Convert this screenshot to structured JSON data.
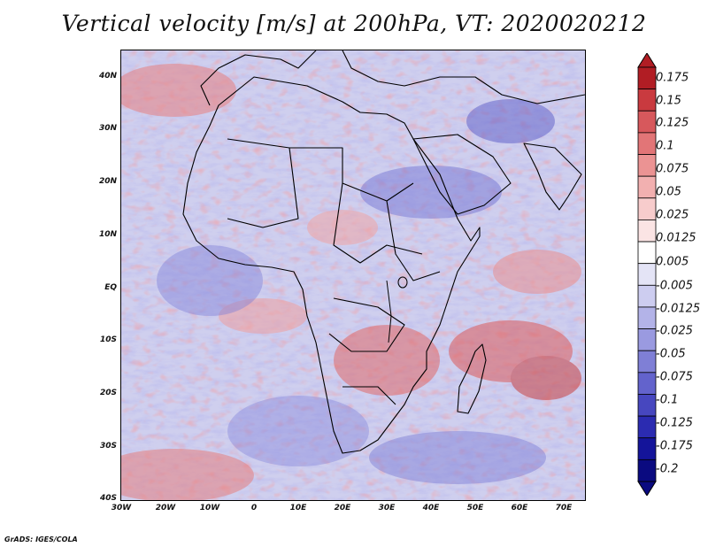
{
  "title": "Vertical velocity [m/s] at 200hPa, VT: 2020020212",
  "credit": "GrADS: IGES/COLA",
  "map": {
    "region": "Africa and surrounding oceans",
    "lon_range": [
      -30,
      75
    ],
    "lat_range": [
      -40,
      45
    ],
    "lat_ticks": [
      "40N",
      "30N",
      "20N",
      "10N",
      "EQ",
      "10S",
      "20S",
      "30S",
      "40S"
    ],
    "lon_ticks": [
      "30W",
      "20W",
      "10W",
      "0",
      "10E",
      "20E",
      "30E",
      "40E",
      "50E",
      "60E",
      "70E"
    ],
    "colormap": "blue-white-red diverging",
    "coastline_color": "#000000"
  },
  "colorbar": {
    "labels": [
      "0.175",
      "0.15",
      "0.125",
      "0.1",
      "0.075",
      "0.05",
      "0.025",
      "0.0125",
      "0.005",
      "-0.005",
      "-0.0125",
      "-0.025",
      "-0.05",
      "-0.075",
      "-0.1",
      "-0.125",
      "-0.175",
      "-0.2"
    ],
    "colors": [
      "#b11d24",
      "#c93a3f",
      "#d7585c",
      "#e27577",
      "#eb9393",
      "#f2b0b0",
      "#f7cccc",
      "#fbe4e4",
      "#ffffff",
      "#e4e4f6",
      "#cdcdf0",
      "#b3b3e8",
      "#9a9ae0",
      "#7f7fd6",
      "#6363cc",
      "#4747bf",
      "#2b2bb1",
      "#14149a",
      "#0a0a80"
    ]
  }
}
